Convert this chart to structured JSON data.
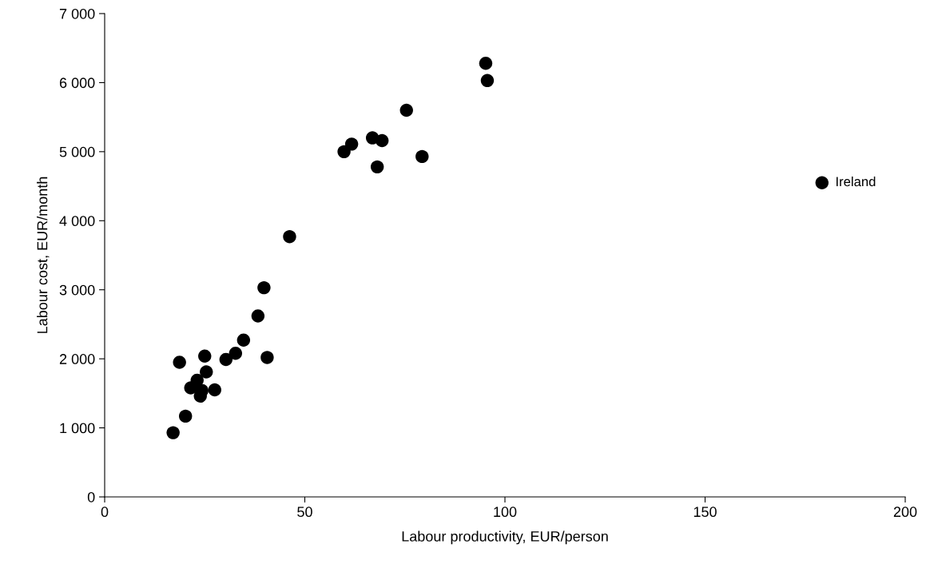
{
  "chart_data": {
    "type": "scatter",
    "xlabel": "Labour productivity, EUR/person",
    "ylabel": "Labour cost, EUR/month",
    "x": [
      17.1,
      20.2,
      18.7,
      25.0,
      25.4,
      23.1,
      21.5,
      24.3,
      23.9,
      27.5,
      30.3,
      32.7,
      34.7,
      40.6,
      38.3,
      39.8,
      46.2,
      59.8,
      61.7,
      66.9,
      69.3,
      68.1,
      79.3,
      75.4,
      95.2,
      95.6,
      179.2
    ],
    "values": [
      930,
      1170,
      1950,
      2040,
      1810,
      1690,
      1580,
      1540,
      1460,
      1550,
      1990,
      2080,
      2270,
      2020,
      2620,
      3030,
      3770,
      5000,
      5110,
      5200,
      5160,
      4780,
      4930,
      5600,
      6280,
      6030,
      4550
    ],
    "color": "#000000",
    "marker": "circle",
    "grid": false,
    "legend": false,
    "xlim": [
      0,
      200
    ],
    "xticks": [
      0,
      50,
      100,
      150,
      200
    ],
    "ylim": [
      0,
      7000
    ],
    "yticks": [
      {
        "value": 0,
        "label": "0"
      },
      {
        "value": 1000,
        "label": "1 000"
      },
      {
        "value": 2000,
        "label": "2 000"
      },
      {
        "value": 3000,
        "label": "3 000"
      },
      {
        "value": 4000,
        "label": "4 000"
      },
      {
        "value": 5000,
        "label": "5 000"
      },
      {
        "value": 6000,
        "label": "6 000"
      },
      {
        "value": 7000,
        "label": "7 000"
      }
    ],
    "annotations": [
      {
        "text": "Ireland",
        "x": 179.2,
        "y": 4550
      }
    ]
  }
}
